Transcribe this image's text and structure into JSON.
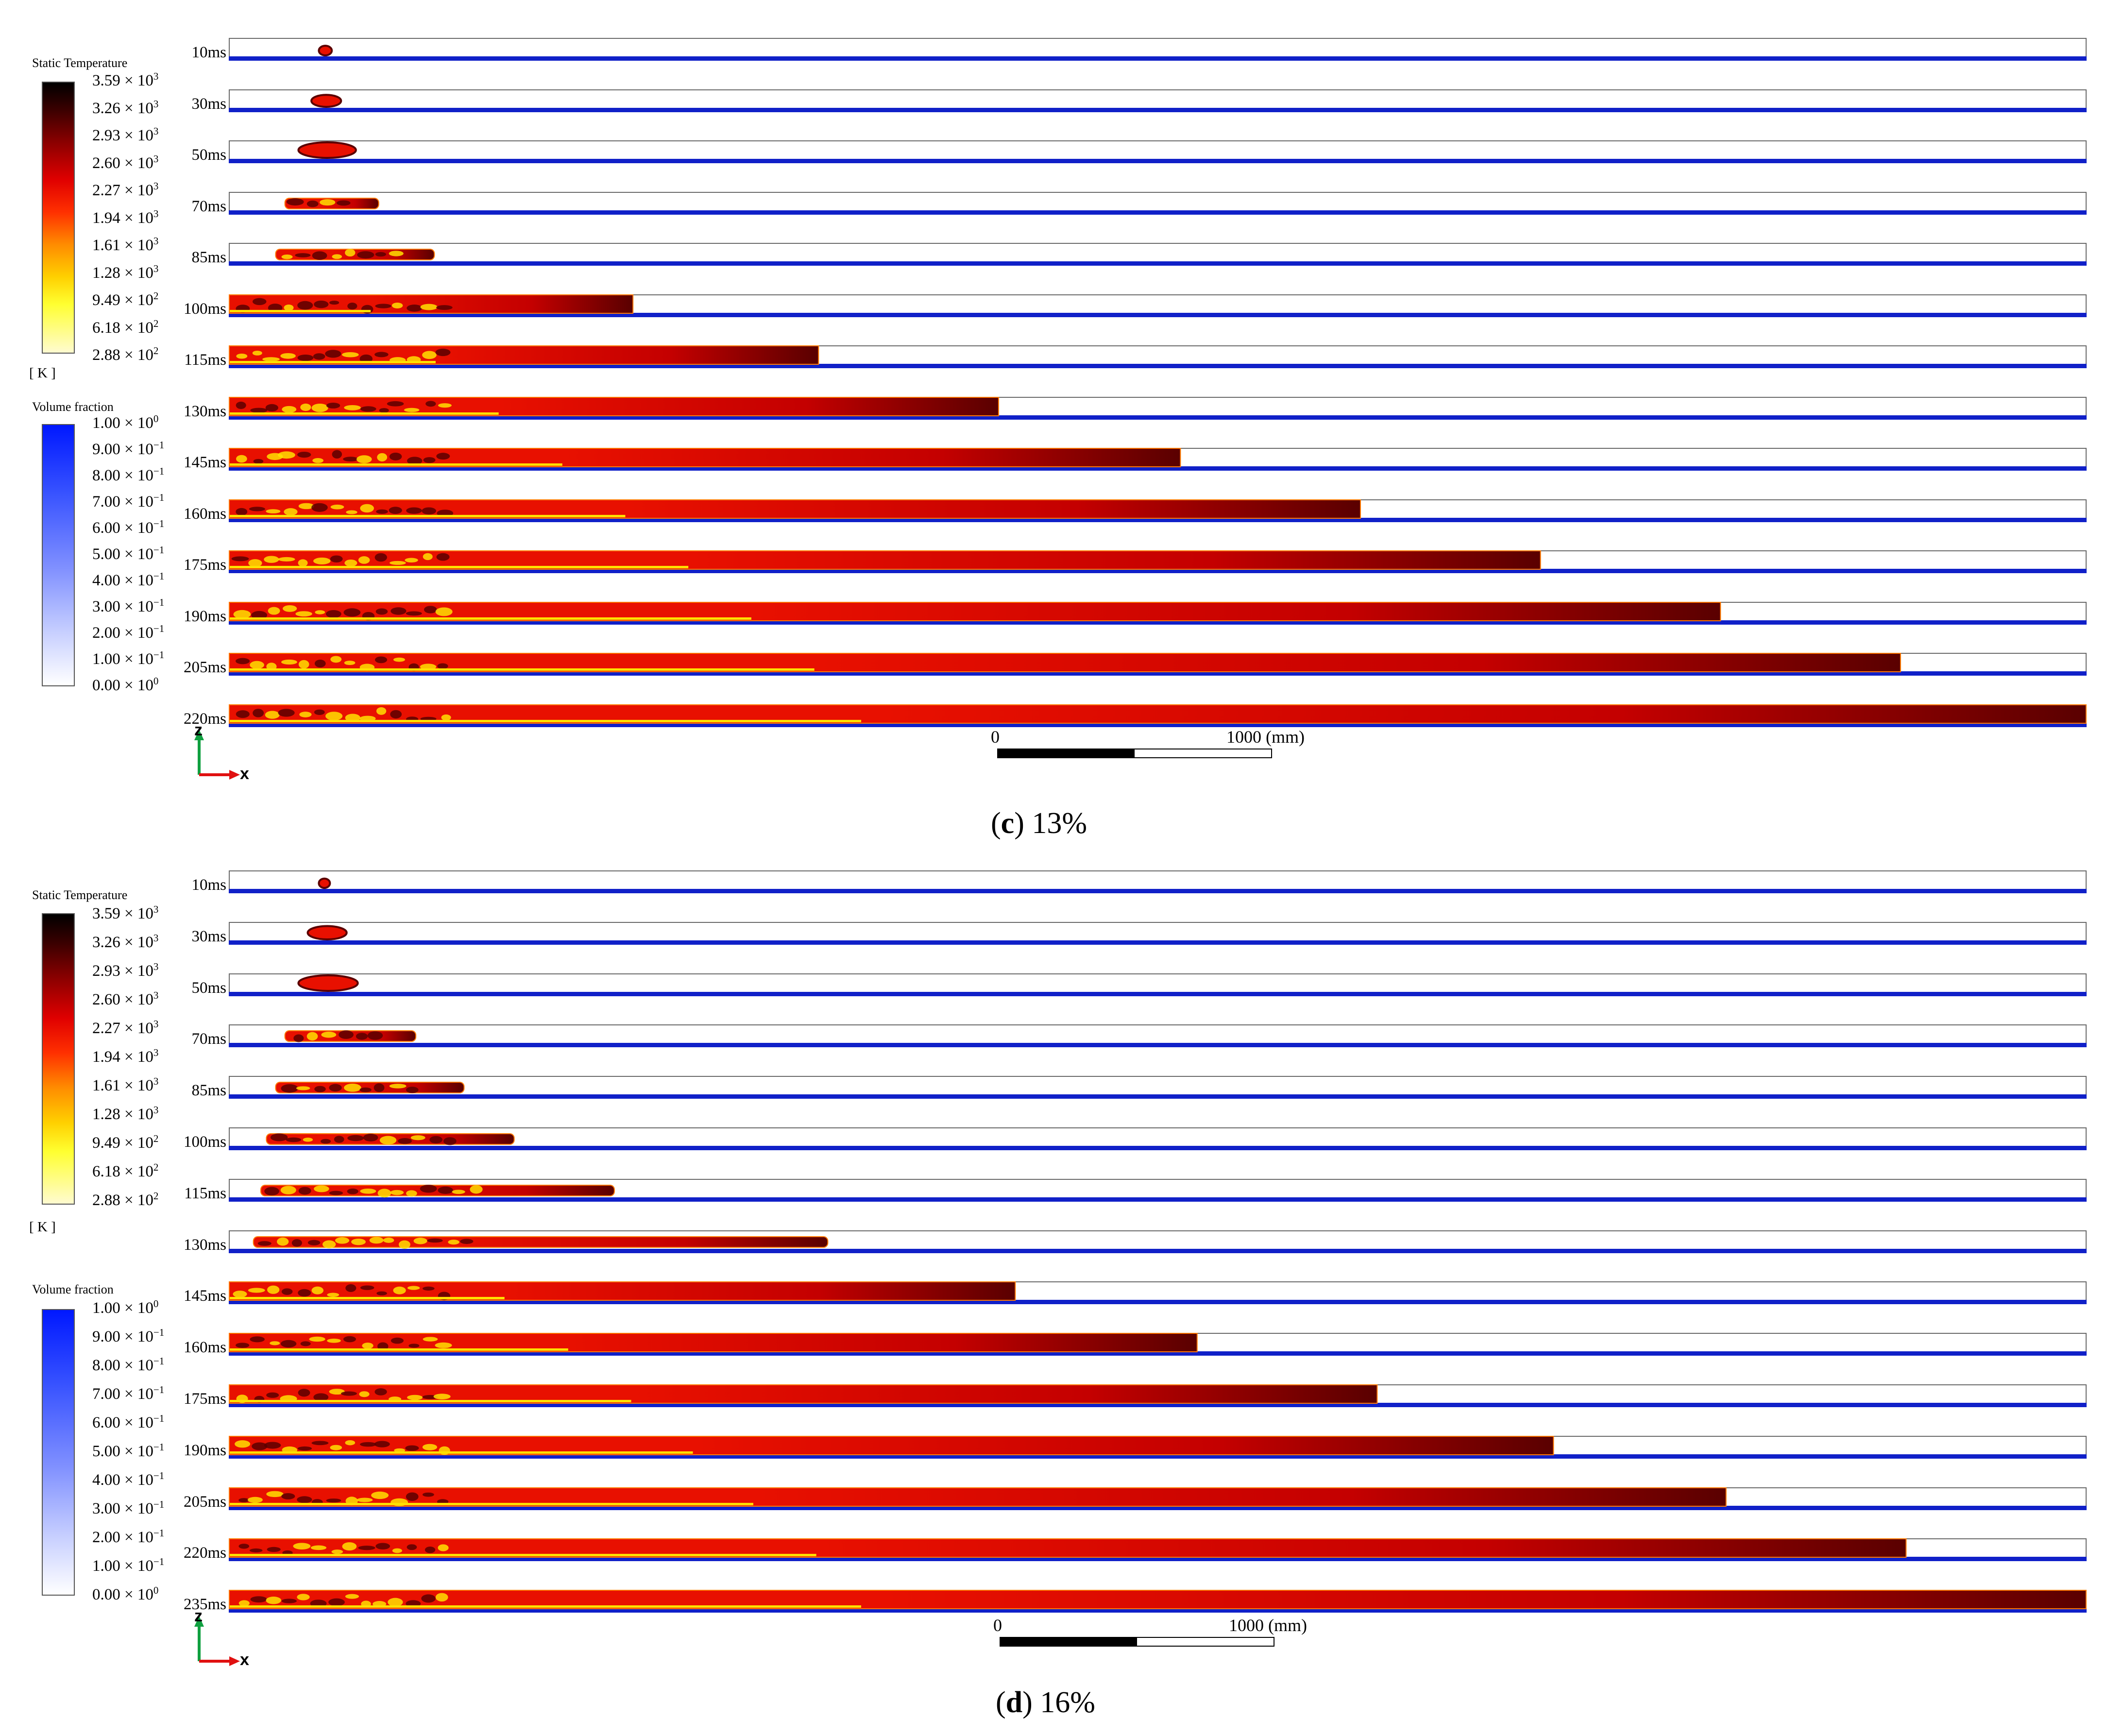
{
  "panels": [
    {
      "id": "c",
      "caption_letter": "c",
      "caption_value": "13%",
      "temperature_legend": {
        "title": "Static Temperature",
        "unit": "[ K ]",
        "ticks": [
          "3.59 × 10",
          "3.26 × 10",
          "2.93 × 10",
          "2.60 × 10",
          "2.27 × 10",
          "1.94 × 10",
          "1.61 × 10",
          "1.28 × 10",
          "9.49 × 10",
          "6.18 × 10",
          "2.88 × 10"
        ],
        "exponents": [
          "3",
          "3",
          "3",
          "3",
          "3",
          "3",
          "3",
          "3",
          "2",
          "2",
          "2"
        ]
      },
      "volume_legend": {
        "title": "Volume fraction",
        "ticks": [
          "1.00 × 10",
          "9.00 × 10",
          "8.00 × 10",
          "7.00 × 10",
          "6.00 × 10",
          "5.00 × 10",
          "4.00 × 10",
          "3.00 × 10",
          "2.00 × 10",
          "1.00 × 10",
          "0.00 × 10"
        ],
        "exponents": [
          "0",
          "−1",
          "−1",
          "−1",
          "−1",
          "−1",
          "−1",
          "−1",
          "−1",
          "−1",
          "0"
        ]
      },
      "time_labels": [
        "10ms",
        "30ms",
        "50ms",
        "70ms",
        "85ms",
        "100ms",
        "115ms",
        "130ms",
        "145ms",
        "160ms",
        "175ms",
        "190ms",
        "205ms",
        "220ms"
      ],
      "flame_front_fraction": [
        0.055,
        0.06,
        0.068,
        0.08,
        0.11,
        0.217,
        0.317,
        0.414,
        0.512,
        0.609,
        0.706,
        0.803,
        0.9,
        1.0
      ],
      "flame_start_fraction": [
        0.048,
        0.044,
        0.037,
        0.03,
        0.025,
        0.0,
        0.0,
        0.0,
        0.0,
        0.0,
        0.0,
        0.0,
        0.0,
        0.0
      ],
      "scale_bar": {
        "zero_label": "0",
        "max_label": "1000 (mm)"
      },
      "axes": {
        "z": "z",
        "x": "x"
      }
    },
    {
      "id": "d",
      "caption_letter": "d",
      "caption_value": "16%",
      "temperature_legend": {
        "title": "Static Temperature",
        "unit": "[ K ]",
        "ticks": [
          "3.59 × 10",
          "3.26 × 10",
          "2.93 × 10",
          "2.60 × 10",
          "2.27 × 10",
          "1.94 × 10",
          "1.61 × 10",
          "1.28 × 10",
          "9.49 × 10",
          "6.18 × 10",
          "2.88 × 10"
        ],
        "exponents": [
          "3",
          "3",
          "3",
          "3",
          "3",
          "3",
          "3",
          "3",
          "2",
          "2",
          "2"
        ]
      },
      "volume_legend": {
        "title": "Volume fraction",
        "ticks": [
          "1.00 × 10",
          "9.00 × 10",
          "8.00 × 10",
          "7.00 × 10",
          "6.00 × 10",
          "5.00 × 10",
          "4.00 × 10",
          "3.00 × 10",
          "2.00 × 10",
          "1.00 × 10",
          "0.00 × 10"
        ],
        "exponents": [
          "0",
          "−1",
          "−1",
          "−1",
          "−1",
          "−1",
          "−1",
          "−1",
          "−1",
          "−1",
          "0"
        ]
      },
      "time_labels": [
        "10ms",
        "30ms",
        "50ms",
        "70ms",
        "85ms",
        "100ms",
        "115ms",
        "130ms",
        "145ms",
        "160ms",
        "175ms",
        "190ms",
        "205ms",
        "220ms",
        "235ms"
      ],
      "flame_front_fraction": [
        0.054,
        0.063,
        0.069,
        0.1,
        0.126,
        0.153,
        0.207,
        0.322,
        0.423,
        0.521,
        0.618,
        0.713,
        0.806,
        0.903,
        1.0
      ],
      "flame_start_fraction": [
        0.048,
        0.042,
        0.037,
        0.03,
        0.025,
        0.02,
        0.017,
        0.013,
        0.0,
        0.0,
        0.0,
        0.0,
        0.0,
        0.0,
        0.0
      ],
      "scale_bar": {
        "zero_label": "0",
        "max_label": "1000 (mm)"
      },
      "axes": {
        "z": "z",
        "x": "x"
      }
    }
  ],
  "colors": {
    "blue_wall": "#1020c8",
    "flame_dark": "#5a0000",
    "flame_red": "#e81000",
    "flame_orange": "#ff7a00",
    "flame_yellow": "#ffe000",
    "strip_border": "#6a6a6a",
    "axis_z": "#10a040",
    "axis_x": "#e01010"
  }
}
